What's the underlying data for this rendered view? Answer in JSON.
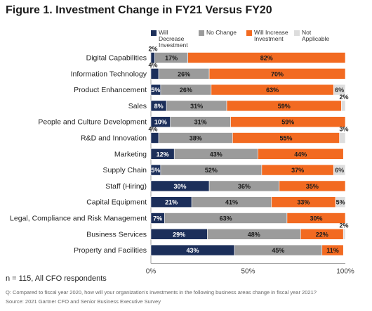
{
  "title": "Figure 1. Investment Change in FY21 Versus FY20",
  "colors": {
    "decrease": "#1c2f5a",
    "no_change": "#9b9b9b",
    "increase": "#f26a21",
    "not_applicable": "#dddddd"
  },
  "legend": [
    {
      "key": "decrease",
      "label": "Will Decrease Investment"
    },
    {
      "key": "no_change",
      "label": "No Change"
    },
    {
      "key": "increase",
      "label": "Will Increase Investment"
    },
    {
      "key": "not_applicable",
      "label": "Not Applicable"
    }
  ],
  "chart_data": {
    "type": "bar",
    "orientation": "horizontal",
    "stacked": true,
    "title": "Figure 1. Investment Change in FY21 Versus FY20",
    "xlim": [
      0,
      100
    ],
    "x_ticks": [
      "0%",
      "50%",
      "100%"
    ],
    "categories": [
      "Digital Capabilities",
      "Information Technology",
      "Product Enhancement",
      "Sales",
      "People and Culture Development",
      "R&D and Innovation",
      "Marketing",
      "Supply Chain",
      "Staff (Hiring)",
      "Capital Equipment",
      "Legal, Compliance and Risk Management",
      "Business Services",
      "Property and Facilities"
    ],
    "series": [
      {
        "name": "Will Decrease Investment",
        "key": "decrease",
        "values": [
          2,
          4,
          5,
          8,
          10,
          4,
          12,
          5,
          30,
          21,
          7,
          29,
          43
        ]
      },
      {
        "name": "No Change",
        "key": "no_change",
        "values": [
          17,
          26,
          26,
          31,
          31,
          38,
          43,
          52,
          36,
          41,
          63,
          48,
          45
        ]
      },
      {
        "name": "Will Increase Investment",
        "key": "increase",
        "values": [
          82,
          70,
          63,
          59,
          59,
          55,
          44,
          37,
          35,
          33,
          30,
          22,
          11
        ]
      },
      {
        "name": "Not Applicable",
        "key": "not_applicable",
        "values": [
          0,
          0,
          6,
          2,
          0,
          3,
          0,
          6,
          0,
          5,
          0,
          2,
          0
        ]
      }
    ]
  },
  "footer": {
    "n": "n = 115, All CFO respondents",
    "question": "Q: Compared to fiscal year 2020, how will your organization's investments in the following business areas change in fiscal year 2021?",
    "source": "Source: 2021 Gartner CFO and Senior Business Executive Survey"
  }
}
